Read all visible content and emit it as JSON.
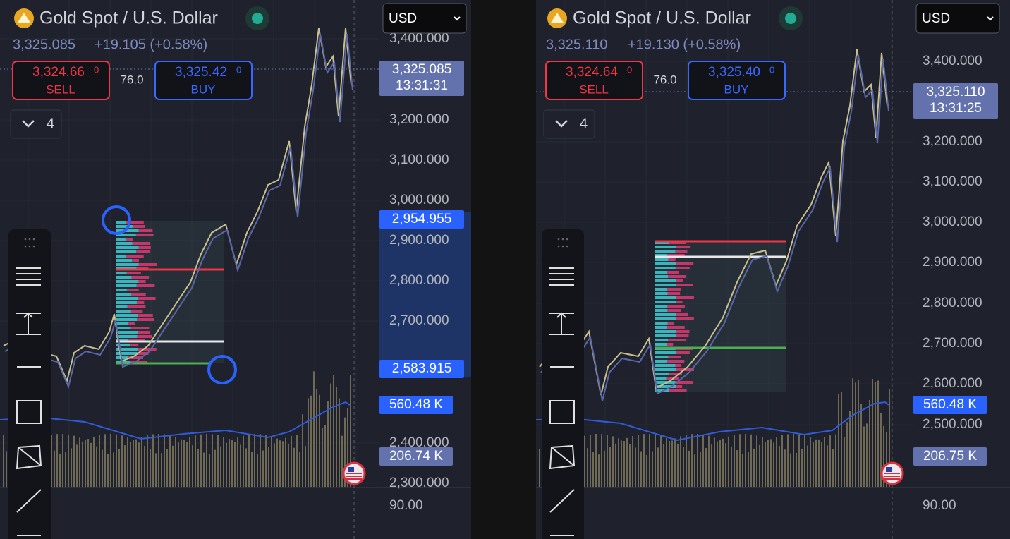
{
  "panels": [
    {
      "title": "Gold Spot / U.S. Dollar",
      "quote": "3,325.085",
      "change": "+19.105 (+0.58%)",
      "sell": {
        "price": "3,324.66",
        "pip": "0",
        "label": "SELL"
      },
      "spread": "76.0",
      "buy": {
        "price": "3,325.42",
        "pip": "0",
        "label": "BUY"
      },
      "currency": "USD",
      "layers": "4",
      "axis_labels": [
        "3,400.000",
        "3,200.000",
        "3,100.000",
        "3,000.000",
        "2,900.000",
        "2,800.000",
        "2,700.000",
        "2,400.000",
        "2,300.000",
        "90.00"
      ],
      "price_tag": {
        "price": "3,325.085",
        "time": "13:31:31"
      },
      "range_tags": [
        "2,954.955",
        "2,583.915"
      ],
      "volume_tags": [
        "560.48 K",
        "206.74 K"
      ]
    },
    {
      "title": "Gold Spot / U.S. Dollar",
      "quote": "3,325.110",
      "change": "+19.130 (+0.58%)",
      "sell": {
        "price": "3,324.64",
        "pip": "0",
        "label": "SELL"
      },
      "spread": "76.0",
      "buy": {
        "price": "3,325.40",
        "pip": "0",
        "label": "BUY"
      },
      "currency": "USD",
      "layers": "4",
      "axis_labels": [
        "3,400.000",
        "3,200.000",
        "3,100.000",
        "3,000.000",
        "2,900.000",
        "2,800.000",
        "2,700.000",
        "2,600.000",
        "2,500.000",
        "90.00"
      ],
      "price_tag": {
        "price": "3,325.110",
        "time": "13:31:25"
      },
      "range_tags": [],
      "volume_tags": [
        "560.48 K",
        "206.75 K"
      ]
    }
  ]
}
